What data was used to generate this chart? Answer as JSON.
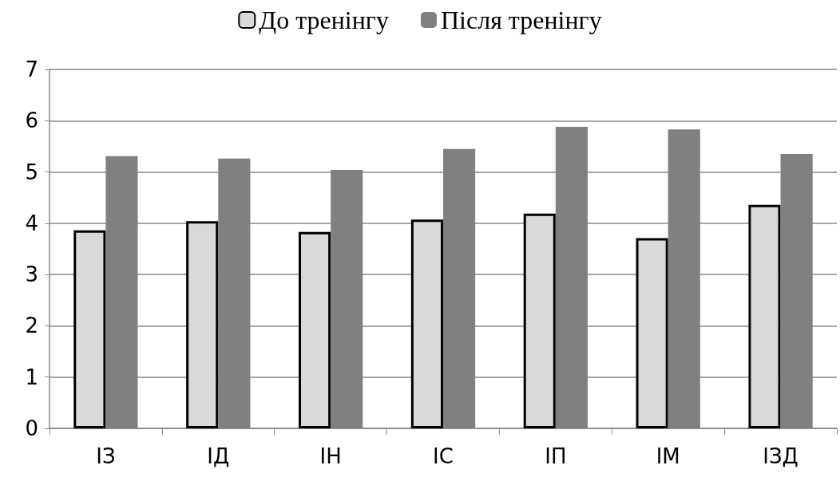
{
  "chart_data": {
    "type": "bar",
    "categories": [
      "ІЗ",
      "ІД",
      "ІН",
      "ІС",
      "ІП",
      "ІМ",
      "ІЗД"
    ],
    "series": [
      {
        "name": "До тренінгу",
        "color": "#d9d9d9",
        "values": [
          3.86,
          4.04,
          3.83,
          4.07,
          4.19,
          3.71,
          4.36
        ]
      },
      {
        "name": "Після тренінгу",
        "color": "#808080",
        "values": [
          5.31,
          5.26,
          5.04,
          5.45,
          5.88,
          5.83,
          5.35
        ]
      }
    ],
    "ylim": [
      0,
      7
    ],
    "yticks": [
      0,
      1,
      2,
      3,
      4,
      5,
      6,
      7
    ],
    "grid": "y",
    "legend": "top"
  }
}
